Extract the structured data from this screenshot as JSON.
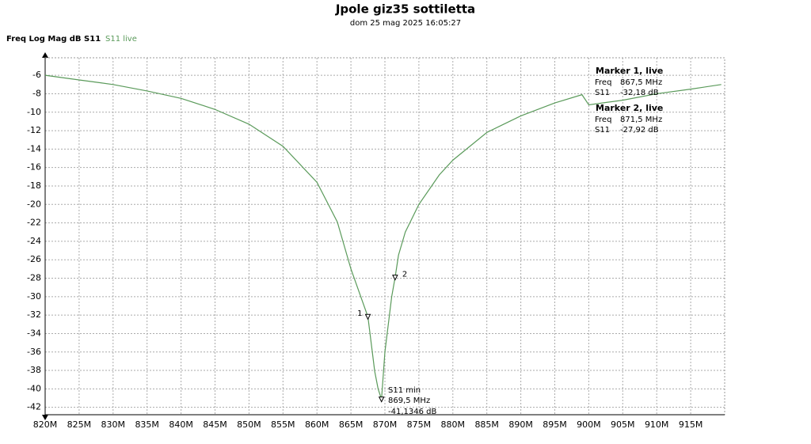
{
  "chart_data": {
    "type": "line",
    "title": "Jpole giz35 sottiletta",
    "subtitle": "dom 25 mag 2025 16:05:27",
    "trace_label": "Freq Log Mag dB S11",
    "x": [
      820,
      825,
      830,
      835,
      840,
      845,
      850,
      855,
      860,
      863,
      865,
      867.5,
      868.5,
      869,
      869.5,
      870,
      871,
      871.5,
      872,
      873,
      875,
      878,
      880,
      885,
      890,
      895,
      899,
      900,
      905,
      910,
      915,
      919.5
    ],
    "series": [
      {
        "name": "S11 live",
        "color": "#5a9a5a",
        "values": [
          -6.0,
          -6.5,
          -7.0,
          -7.7,
          -8.5,
          -9.7,
          -11.3,
          -13.7,
          -17.6,
          -21.9,
          -27.0,
          -32.18,
          -38.1,
          -40.0,
          -41.13,
          -36.0,
          -30.0,
          -27.92,
          -25.5,
          -23.0,
          -20.0,
          -16.8,
          -15.2,
          -12.2,
          -10.4,
          -9.0,
          -8.1,
          -9.2,
          -8.7,
          -8.0,
          -7.5,
          -7.0
        ]
      }
    ],
    "xlim": [
      820,
      920
    ],
    "ylim": [
      -42.8,
      -4.1
    ],
    "xticks": [
      {
        "value": 820,
        "label": "820M"
      },
      {
        "value": 825,
        "label": "825M"
      },
      {
        "value": 830,
        "label": "830M"
      },
      {
        "value": 835,
        "label": "835M"
      },
      {
        "value": 840,
        "label": "840M"
      },
      {
        "value": 845,
        "label": "845M"
      },
      {
        "value": 850,
        "label": "850M"
      },
      {
        "value": 855,
        "label": "855M"
      },
      {
        "value": 860,
        "label": "860M"
      },
      {
        "value": 865,
        "label": "865M"
      },
      {
        "value": 870,
        "label": "870M"
      },
      {
        "value": 875,
        "label": "875M"
      },
      {
        "value": 880,
        "label": "880M"
      },
      {
        "value": 885,
        "label": "885M"
      },
      {
        "value": 890,
        "label": "890M"
      },
      {
        "value": 895,
        "label": "895M"
      },
      {
        "value": 900,
        "label": "900M"
      },
      {
        "value": 905,
        "label": "905M"
      },
      {
        "value": 910,
        "label": "910M"
      },
      {
        "value": 915,
        "label": "915M"
      }
    ],
    "yticks": [
      -6,
      -8,
      -10,
      -12,
      -14,
      -16,
      -18,
      -20,
      -22,
      -24,
      -26,
      -28,
      -30,
      -32,
      -34,
      -36,
      -38,
      -40,
      -42
    ],
    "grid": true,
    "markers": [
      {
        "name": "1",
        "title": "Marker 1, live",
        "freq_text": "Freq",
        "param_text": "S11",
        "x": 867.5,
        "y": -32.18,
        "x_label": "867,5 MHz",
        "y_label": "-32,18 dB"
      },
      {
        "name": "2",
        "title": "Marker 2, live",
        "freq_text": "Freq",
        "param_text": "S11",
        "x": 871.5,
        "y": -27.92,
        "x_label": "871,5 MHz",
        "y_label": "-27,92 dB"
      }
    ],
    "minimum": {
      "title": "S11 min",
      "x": 869.5,
      "y": -41.1346,
      "x_label": "869,5 MHz",
      "y_label": "-41,1346 dB"
    }
  }
}
